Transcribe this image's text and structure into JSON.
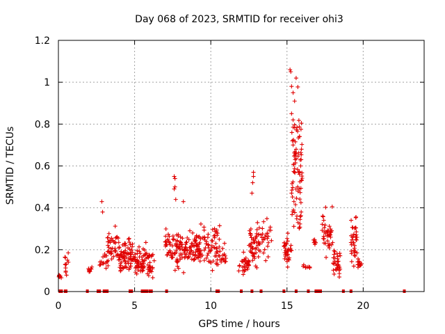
{
  "chart_data": {
    "type": "scatter",
    "title": "Day 068 of 2023, SRMTID for receiver ohi3",
    "xlabel": "GPS time / hours",
    "ylabel": "SRMTID / TECUs",
    "xlim": [
      0,
      24
    ],
    "ylim": [
      0,
      1.2
    ],
    "x_ticks": [
      0,
      5,
      10,
      15,
      20
    ],
    "x_tick_labels": [
      "0",
      "5",
      "10",
      "15",
      "20"
    ],
    "y_ticks": [
      0,
      0.2,
      0.4,
      0.6,
      0.8,
      1.0,
      1.2
    ],
    "y_tick_labels": [
      "0",
      "0.2",
      "0.4",
      "0.6",
      "0.8",
      "1",
      "1.2"
    ],
    "grid": true,
    "marker": "plus",
    "color": "#e00000",
    "series": [
      {
        "name": "SRMTID",
        "clusters": [
          {
            "x_range": [
              0.0,
              0.2
            ],
            "y_range": [
              0.04,
              0.12
            ],
            "count": 8
          },
          {
            "x_range": [
              0.4,
              0.7
            ],
            "y_range": [
              0.05,
              0.23
            ],
            "count": 12
          },
          {
            "x_range": [
              1.9,
              2.2
            ],
            "y_range": [
              0.08,
              0.13
            ],
            "count": 8
          },
          {
            "x_range": [
              2.7,
              3.2
            ],
            "y_range": [
              0.08,
              0.22
            ],
            "count": 14
          },
          {
            "x_range": [
              3.2,
              4.0
            ],
            "y_range": [
              0.06,
              0.36
            ],
            "count": 45
          },
          {
            "x_range": [
              4.0,
              5.0
            ],
            "y_range": [
              0.06,
              0.28
            ],
            "count": 70
          },
          {
            "x_range": [
              5.0,
              5.8
            ],
            "y_range": [
              0.05,
              0.25
            ],
            "count": 55
          },
          {
            "x_range": [
              5.8,
              6.3
            ],
            "y_range": [
              0.04,
              0.22
            ],
            "count": 30
          },
          {
            "x_range": [
              7.0,
              7.6
            ],
            "y_range": [
              0.1,
              0.33
            ],
            "count": 35
          },
          {
            "x_range": [
              7.6,
              8.5
            ],
            "y_range": [
              0.08,
              0.32
            ],
            "count": 60
          },
          {
            "x_range": [
              8.5,
              9.5
            ],
            "y_range": [
              0.07,
              0.33
            ],
            "count": 65
          },
          {
            "x_range": [
              9.5,
              10.6
            ],
            "y_range": [
              0.06,
              0.36
            ],
            "count": 60
          },
          {
            "x_range": [
              10.6,
              11.0
            ],
            "y_range": [
              0.08,
              0.29
            ],
            "count": 15
          },
          {
            "x_range": [
              11.8,
              12.5
            ],
            "y_range": [
              0.06,
              0.2
            ],
            "count": 30
          },
          {
            "x_range": [
              12.5,
              13.0
            ],
            "y_range": [
              0.06,
              0.36
            ],
            "count": 35
          },
          {
            "x_range": [
              13.0,
              14.0
            ],
            "y_range": [
              0.1,
              0.38
            ],
            "count": 40
          },
          {
            "x_range": [
              14.8,
              15.3
            ],
            "y_range": [
              0.1,
              0.3
            ],
            "count": 35
          },
          {
            "x_range": [
              15.3,
              16.0
            ],
            "y_range": [
              0.12,
              1.06
            ],
            "count": 80
          },
          {
            "x_range": [
              16.0,
              16.5
            ],
            "y_range": [
              0.1,
              0.14
            ],
            "count": 8
          },
          {
            "x_range": [
              16.6,
              16.9
            ],
            "y_range": [
              0.22,
              0.26
            ],
            "count": 8
          },
          {
            "x_range": [
              17.3,
              18.0
            ],
            "y_range": [
              0.1,
              0.44
            ],
            "count": 40
          },
          {
            "x_range": [
              18.0,
              18.5
            ],
            "y_range": [
              0.03,
              0.25
            ],
            "count": 30
          },
          {
            "x_range": [
              19.2,
              19.6
            ],
            "y_range": [
              0.1,
              0.41
            ],
            "count": 35
          },
          {
            "x_range": [
              19.6,
              19.9
            ],
            "y_range": [
              0.08,
              0.17
            ],
            "count": 14
          }
        ],
        "outliers": [
          {
            "x": 2.85,
            "y": 0.43
          },
          {
            "x": 2.9,
            "y": 0.38
          },
          {
            "x": 7.6,
            "y": 0.55
          },
          {
            "x": 7.65,
            "y": 0.54
          },
          {
            "x": 7.65,
            "y": 0.5
          },
          {
            "x": 7.6,
            "y": 0.49
          },
          {
            "x": 7.7,
            "y": 0.44
          },
          {
            "x": 8.2,
            "y": 0.43
          },
          {
            "x": 12.8,
            "y": 0.57
          },
          {
            "x": 12.8,
            "y": 0.55
          },
          {
            "x": 12.75,
            "y": 0.52
          },
          {
            "x": 12.7,
            "y": 0.47
          },
          {
            "x": 15.2,
            "y": 1.06
          },
          {
            "x": 15.25,
            "y": 1.05
          },
          {
            "x": 15.6,
            "y": 1.02
          },
          {
            "x": 15.3,
            "y": 0.98
          },
          {
            "x": 15.4,
            "y": 0.95
          },
          {
            "x": 15.5,
            "y": 0.91
          },
          {
            "x": 15.3,
            "y": 0.85
          },
          {
            "x": 15.4,
            "y": 0.82
          },
          {
            "x": 15.35,
            "y": 0.72
          },
          {
            "x": 15.4,
            "y": 0.7
          },
          {
            "x": 15.6,
            "y": 0.68
          },
          {
            "x": 15.95,
            "y": 0.68
          },
          {
            "x": 15.9,
            "y": 0.6
          },
          {
            "x": 15.8,
            "y": 0.57
          },
          {
            "x": 15.7,
            "y": 0.5
          },
          {
            "x": 15.8,
            "y": 0.49
          },
          {
            "x": 15.3,
            "y": 0.47
          }
        ],
        "zero_values_x": [
          0.1,
          0.2,
          0.45,
          0.5,
          1.9,
          2.6,
          2.7,
          3.0,
          3.1,
          3.2,
          4.7,
          4.8,
          5.5,
          5.6,
          5.7,
          5.8,
          6.0,
          6.1,
          7.1,
          10.4,
          10.5,
          12.0,
          12.7,
          13.3,
          14.8,
          15.6,
          16.4,
          16.9,
          17.0,
          17.1,
          17.2,
          18.7,
          19.2,
          22.7
        ]
      }
    ]
  }
}
